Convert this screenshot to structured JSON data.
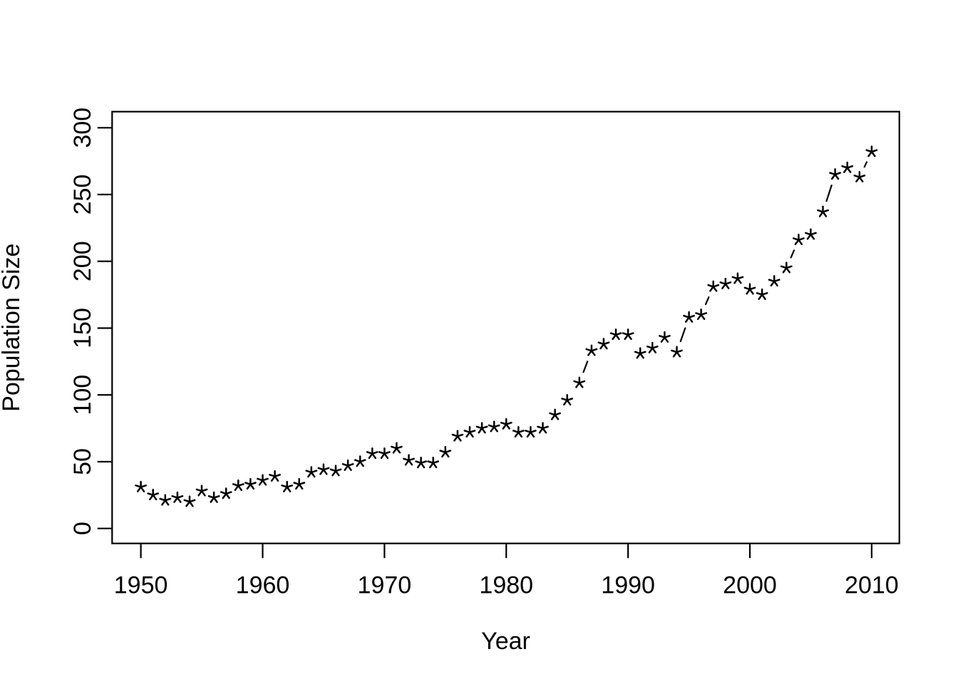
{
  "chart_data": {
    "type": "scatter",
    "subtype": "R-base-type-b-plot",
    "title": "",
    "xlabel": "Year",
    "ylabel": "Population Size",
    "marker_symbol": "asterisk",
    "marker_color": "#000000",
    "line_color": "#000000",
    "background_color": "#ffffff",
    "grid": "off",
    "legend": "none",
    "xlim": [
      1947.6,
      2012.4
    ],
    "ylim": [
      -12,
      312
    ],
    "x_ticks": [
      1950,
      1960,
      1970,
      1980,
      1990,
      2000,
      2010
    ],
    "y_ticks": [
      0,
      50,
      100,
      150,
      200,
      250,
      300
    ],
    "x": [
      1950,
      1951,
      1952,
      1953,
      1954,
      1955,
      1956,
      1957,
      1958,
      1959,
      1960,
      1961,
      1962,
      1963,
      1964,
      1965,
      1966,
      1967,
      1968,
      1969,
      1970,
      1971,
      1972,
      1973,
      1974,
      1975,
      1976,
      1977,
      1978,
      1979,
      1980,
      1981,
      1982,
      1983,
      1984,
      1985,
      1986,
      1987,
      1988,
      1989,
      1990,
      1991,
      1992,
      1993,
      1994,
      1995,
      1996,
      1997,
      1998,
      1999,
      2000,
      2001,
      2002,
      2003,
      2004,
      2005,
      2006,
      2007,
      2008,
      2009,
      2010
    ],
    "values": [
      31,
      25,
      21,
      23,
      20,
      28,
      23,
      26,
      32,
      33,
      36,
      39,
      31,
      33,
      42,
      44,
      43,
      47,
      50,
      56,
      56,
      60,
      51,
      49,
      49,
      57,
      69,
      72,
      75,
      76,
      78,
      72,
      72,
      75,
      85,
      96,
      109,
      133,
      138,
      145,
      145,
      131,
      135,
      143,
      132,
      158,
      160,
      181,
      183,
      187,
      179,
      175,
      185,
      195,
      216,
      220,
      237,
      265,
      270,
      263,
      282
    ]
  }
}
